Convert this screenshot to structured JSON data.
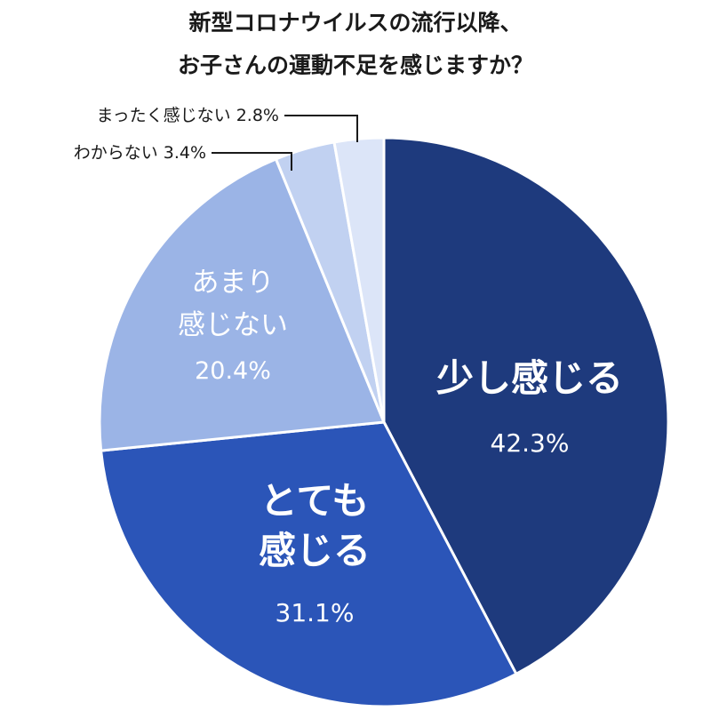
{
  "chart_data": {
    "type": "pie",
    "title_lines": [
      "新型コロナウイルスの流行以降、",
      "お子さんの運動不足を感じますか？"
    ],
    "slices": [
      {
        "label_lines": [
          "少し感じる"
        ],
        "value": 42.3,
        "value_text": "42.3%",
        "color": "#1e3a7d"
      },
      {
        "label_lines": [
          "とても",
          "感じる"
        ],
        "value": 31.1,
        "value_text": "31.1%",
        "color": "#2b55b8"
      },
      {
        "label_lines": [
          "あまり",
          "感じない"
        ],
        "value": 20.4,
        "value_text": "20.4%",
        "color": "#9bb4e6"
      },
      {
        "label_lines": [
          "わからない"
        ],
        "value": 3.4,
        "value_text": "3.4%",
        "color": "#c1d1f1"
      },
      {
        "label_lines": [
          "まったく感じない"
        ],
        "value": 2.8,
        "value_text": "2.8%",
        "color": "#dce5f8"
      }
    ],
    "start": "12 o'clock",
    "direction": "clockwise",
    "legend": "none",
    "callout_line_color": "#1a1a1a"
  }
}
